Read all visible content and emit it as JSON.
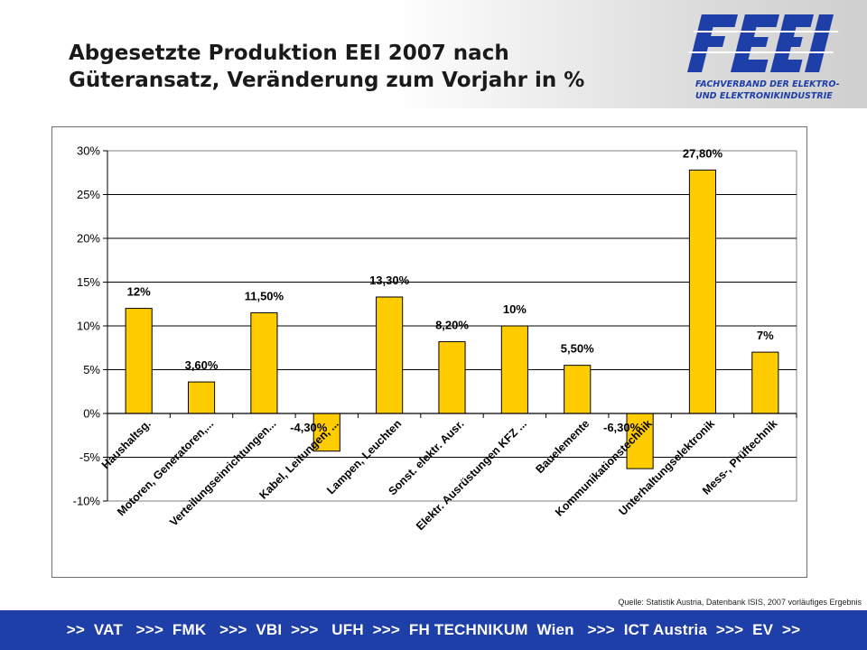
{
  "header": {
    "title_line1": "Abgesetzte Produktion EEI 2007 nach",
    "title_line2": "Güteransatz, Veränderung zum Vorjahr in %",
    "logo": {
      "mark": "FEEI",
      "line1": "FACHVERBAND DER ELEKTRO-",
      "line2": "UND ELEKTRONIKINDUSTRIE",
      "icon": "feei-logo-icon",
      "color": "#1e3ea8"
    }
  },
  "chart_data": {
    "type": "bar",
    "title": "",
    "xlabel": "",
    "ylabel": "",
    "ylim": [
      -10,
      30
    ],
    "yticks": [
      30,
      25,
      20,
      15,
      10,
      5,
      0,
      -5,
      -10
    ],
    "ytick_labels": [
      "30%",
      "25%",
      "20%",
      "15%",
      "10%",
      "5%",
      "0%",
      "-5%",
      "-10%"
    ],
    "grid": true,
    "bar_color": "#ffcc00",
    "plot_background": "#ffffff",
    "categories": [
      "Haushaltsg.",
      "Motoren, Generatoren,...",
      "Verteilungseinrichtungen...",
      "Kabel, Leitungen, ...",
      "Lampen, Leuchten",
      "Sonst. elektr. Ausr.",
      "Elektr. Ausrüstungen KFZ ...",
      "Bauelemente",
      "Kommunikationstechnik",
      "Unterhaltungselektronik",
      "Mess-, Prüftechnik"
    ],
    "values": [
      12,
      3.6,
      11.5,
      -4.3,
      13.3,
      8.2,
      10,
      5.5,
      -6.3,
      27.8,
      7
    ],
    "data_labels": [
      "12%",
      "3,60%",
      "11,50%",
      "-4,30%",
      "13,30%",
      "8,20%",
      "10%",
      "5,50%",
      "-6,30%",
      "27,80%",
      "7%"
    ]
  },
  "source": "Quelle: Statistik Austria, Datenbank ISIS, 2007 vorläufiges Ergebnis",
  "footer": {
    "text": ">>  VAT   >>>  FMK   >>>  VBI  >>>   UFH  >>>  FH TECHNIKUM  Wien   >>>  ICT Austria  >>>  EV  >>",
    "background": "#1e3ea8"
  }
}
